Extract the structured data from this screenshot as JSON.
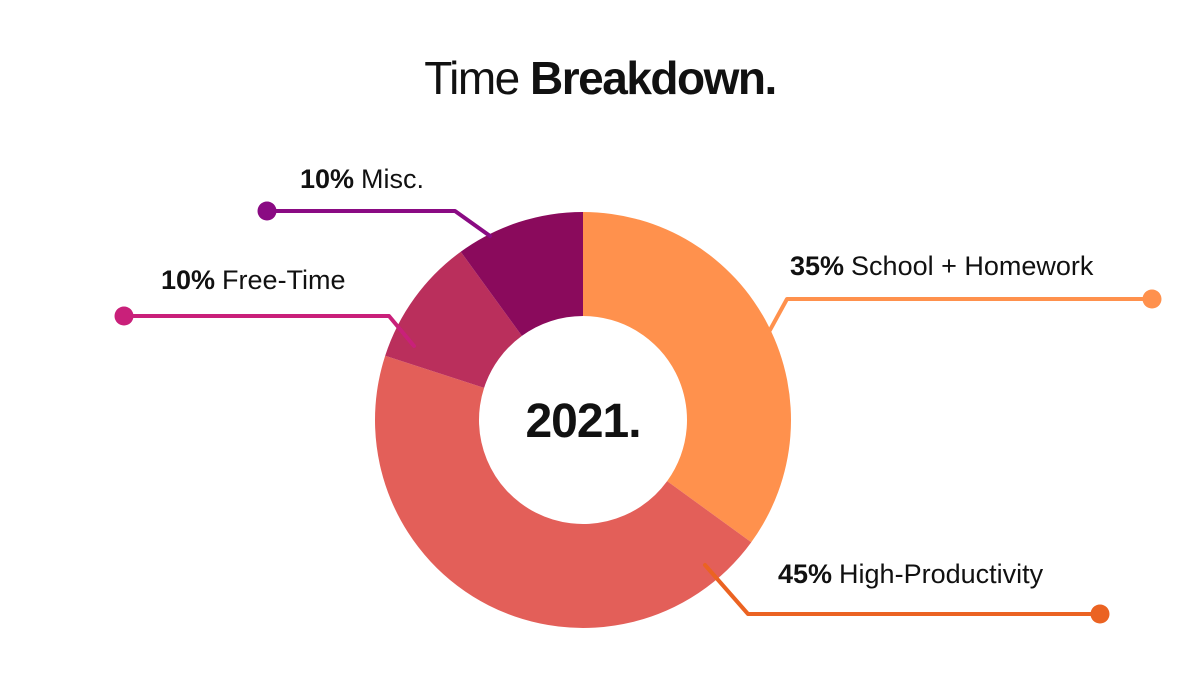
{
  "chart_data": {
    "type": "pie",
    "title": {
      "light": "Time",
      "bold": "Breakdown."
    },
    "center_label": "2021.",
    "slices": [
      {
        "percent_label": "35%",
        "label": "School + Homework",
        "value": 35,
        "color": "#FF914D"
      },
      {
        "percent_label": "45%",
        "label": "High-Productivity",
        "value": 45,
        "color": "#E35F59"
      },
      {
        "percent_label": "10%",
        "label": "Free-Time",
        "value": 10,
        "color": "#BA2F5C"
      },
      {
        "percent_label": "10%",
        "label": "Misc.",
        "value": 10,
        "color": "#8A0A5C"
      }
    ],
    "leader_colors": [
      "#FF914D",
      "#EB6322",
      "#C9207A",
      "#8A0A83"
    ]
  }
}
